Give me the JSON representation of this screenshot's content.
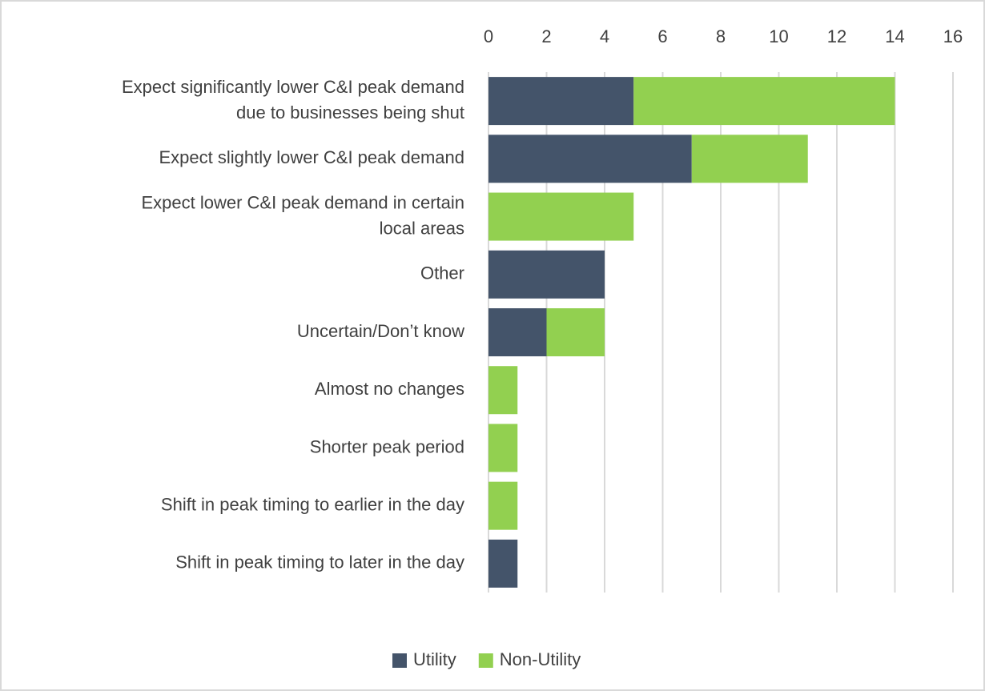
{
  "chart_data": {
    "type": "stacked_barh",
    "categories": [
      [
        "Expect significantly lower C&I peak demand",
        "due to businesses being shut"
      ],
      [
        "Expect slightly lower C&I peak demand"
      ],
      [
        "Expect lower C&I peak demand in certain",
        "local areas"
      ],
      [
        "Other"
      ],
      [
        "Uncertain/Don’t know"
      ],
      [
        "Almost no changes"
      ],
      [
        "Shorter peak period"
      ],
      [
        "Shift in peak timing to earlier in the day"
      ],
      [
        "Shift in peak timing to later in the day"
      ]
    ],
    "series": [
      {
        "name": "Utility",
        "color": "#44546a",
        "values": [
          5,
          7,
          0,
          4,
          2,
          0,
          0,
          0,
          1
        ]
      },
      {
        "name": "Non-Utility",
        "color": "#92d050",
        "values": [
          9,
          4,
          5,
          0,
          2,
          1,
          1,
          1,
          0
        ]
      }
    ],
    "xlim": [
      0,
      16
    ],
    "xticks": [
      0,
      2,
      4,
      6,
      8,
      10,
      12,
      14,
      16
    ],
    "grid": true,
    "legend": "bottom"
  }
}
